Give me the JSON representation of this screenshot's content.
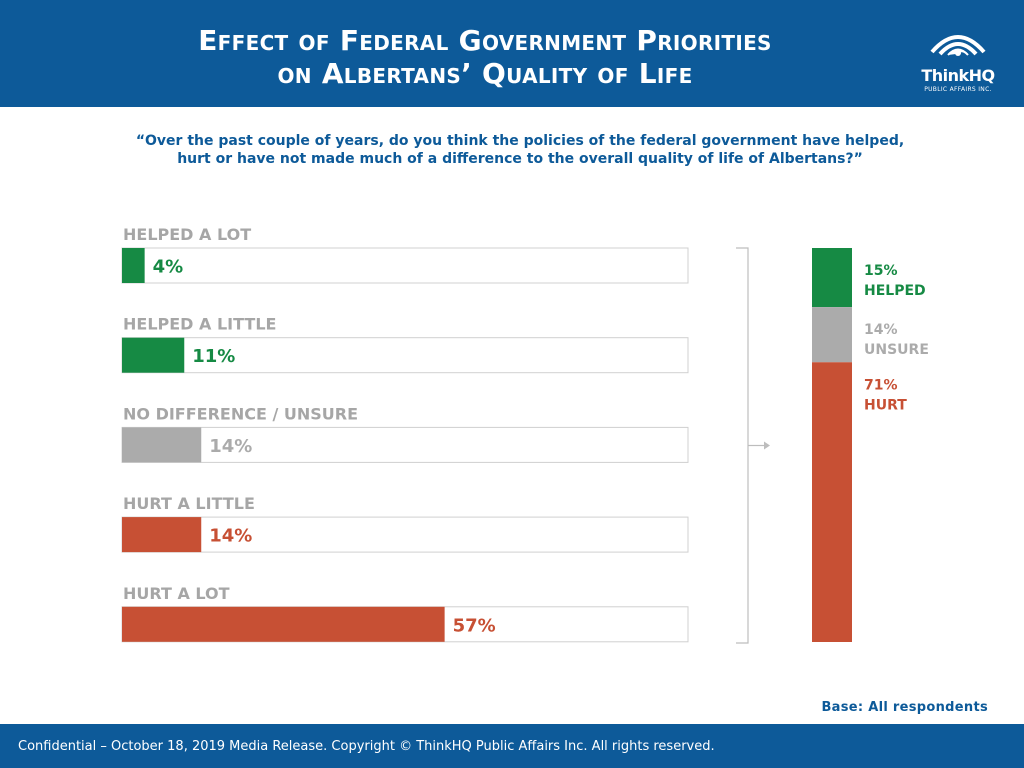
{
  "header": {
    "title_line1": "Effect of Federal Government Priorities",
    "title_line2": "on Albertans’ Quality of Life",
    "logo_name": "ThinkHQ",
    "logo_sub": "PUBLIC AFFAIRS INC.",
    "logo_icon": "eye-wave-icon"
  },
  "question": {
    "line1": "“Over the past couple of years, do you think the policies of the federal government have helped,",
    "line2": "hurt or have not made much of a difference to the overall quality of life of Albertans?”"
  },
  "base_note": "Base: All respondents",
  "footer": "Confidential – October 18, 2019 Media Release. Copyright © ThinkHQ Public Affairs Inc. All rights reserved.",
  "colors": {
    "helped": "#168a44",
    "unsure": "#ababab",
    "hurt": "#c75034",
    "brand": "#0d5a99"
  },
  "chart_data": [
    {
      "type": "bar",
      "orientation": "horizontal",
      "categories": [
        "HELPED A LOT",
        "HELPED A LITTLE",
        "NO DIFFERENCE / UNSURE",
        "HURT A LITTLE",
        "HURT A LOT"
      ],
      "values": [
        4,
        11,
        14,
        14,
        57
      ],
      "value_labels": [
        "4%",
        "11%",
        "14%",
        "14%",
        "57%"
      ],
      "category_groups": [
        "helped",
        "helped",
        "unsure",
        "hurt",
        "hurt"
      ],
      "xlim": [
        0,
        100
      ]
    },
    {
      "type": "bar",
      "orientation": "stacked-vertical",
      "segments": [
        {
          "label": "HELPED",
          "value": 15,
          "value_label": "15%",
          "group": "helped"
        },
        {
          "label": "UNSURE",
          "value": 14,
          "value_label": "14%",
          "group": "unsure"
        },
        {
          "label": "HURT",
          "value": 71,
          "value_label": "71%",
          "group": "hurt"
        }
      ],
      "ylim": [
        0,
        100
      ]
    }
  ]
}
